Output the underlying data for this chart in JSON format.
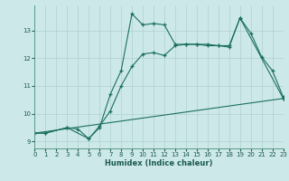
{
  "xlabel": "Humidex (Indice chaleur)",
  "background_color": "#cde8e8",
  "grid_color": "#b0d0d0",
  "line_color": "#1a7060",
  "xlim": [
    0,
    23
  ],
  "ylim": [
    8.75,
    13.9
  ],
  "yticks": [
    9,
    10,
    11,
    12,
    13
  ],
  "xticks": [
    0,
    1,
    2,
    3,
    4,
    5,
    6,
    7,
    8,
    9,
    10,
    11,
    12,
    13,
    14,
    15,
    16,
    17,
    18,
    19,
    20,
    21,
    22,
    23
  ],
  "line1_x": [
    0,
    1,
    3,
    4,
    5,
    6,
    7,
    8,
    9,
    10,
    11,
    12,
    13,
    14,
    15,
    16,
    17,
    18,
    19,
    20,
    21,
    22,
    23
  ],
  "line1_y": [
    9.3,
    9.3,
    9.5,
    9.45,
    9.1,
    9.5,
    10.7,
    11.55,
    13.6,
    13.2,
    13.25,
    13.2,
    12.5,
    12.5,
    12.5,
    12.45,
    12.45,
    12.45,
    13.45,
    12.9,
    12.05,
    11.55,
    10.6
  ],
  "line2_x": [
    0,
    1,
    3,
    5,
    6,
    7,
    8,
    9,
    10,
    11,
    12,
    13,
    14,
    15,
    16,
    17,
    18,
    19,
    23
  ],
  "line2_y": [
    9.3,
    9.3,
    9.5,
    9.1,
    9.55,
    10.1,
    11.0,
    11.7,
    12.15,
    12.2,
    12.1,
    12.45,
    12.5,
    12.5,
    12.5,
    12.45,
    12.4,
    13.45,
    10.55
  ],
  "line3_x": [
    0,
    23
  ],
  "line3_y": [
    9.3,
    10.55
  ]
}
